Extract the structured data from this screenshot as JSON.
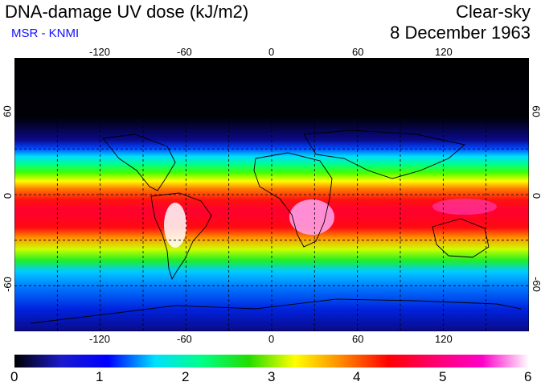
{
  "title": "DNA-damage UV dose (kJ/m2)",
  "source": "MSR - KNMI",
  "sky_condition": "Clear-sky",
  "date": "8 December 1963",
  "colors": {
    "source_text": "#1010ff",
    "scale": [
      "#000000",
      "#1a1acc",
      "#0000ff",
      "#00e0ff",
      "#00ff88",
      "#22dd00",
      "#ffff00",
      "#ff8800",
      "#ff0000",
      "#ff0070",
      "#ff00c8",
      "#ffffff"
    ]
  },
  "map": {
    "lon_ticks": [
      "-120",
      "-60",
      "0",
      "60",
      "120"
    ],
    "lat_ticks_left": [
      "60",
      "0",
      "-60"
    ],
    "lat_ticks_right": [
      "60",
      "0",
      "-60"
    ],
    "grid_lon_values": [
      -150,
      -120,
      -90,
      -60,
      -30,
      0,
      30,
      60,
      90,
      120,
      150
    ],
    "grid_lat_values": [
      60,
      30,
      0,
      -30,
      -60
    ],
    "lon_range": [
      -180,
      180
    ],
    "lat_range": [
      -90,
      90
    ]
  },
  "colorbar": {
    "min": 0,
    "max": 6,
    "labels": [
      "0",
      "1",
      "2",
      "3",
      "4",
      "5",
      "6"
    ]
  }
}
